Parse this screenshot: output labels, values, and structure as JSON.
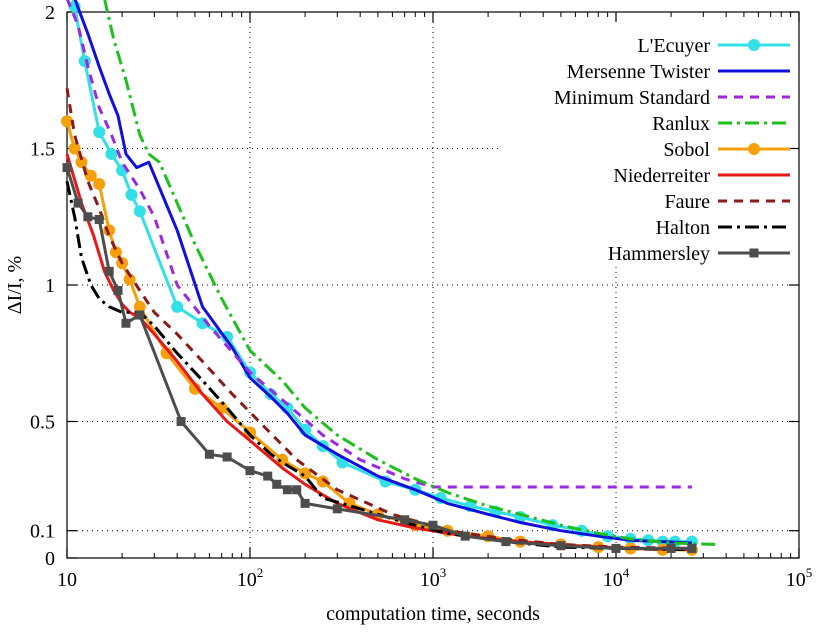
{
  "chart_data": {
    "type": "line",
    "title": "",
    "xlabel": "computation time, seconds",
    "ylabel": "ΔI/I, %",
    "xscale": "log",
    "xlim": [
      10,
      100000
    ],
    "ylim": [
      0,
      2
    ],
    "x_tick_labels": [
      {
        "base": "10",
        "exp": ""
      },
      {
        "base": "10",
        "exp": "2"
      },
      {
        "base": "10",
        "exp": "3"
      },
      {
        "base": "10",
        "exp": "4"
      },
      {
        "base": "10",
        "exp": "5"
      }
    ],
    "y_tick_labels": [
      "0",
      "0.1",
      "0.5",
      "1",
      "1.5",
      "2"
    ],
    "legend_position": "top-right",
    "series": [
      {
        "name": "L'Ecuyer",
        "color": "#33e0e8",
        "dash": "none",
        "marker": "circle",
        "x": [
          10,
          11,
          12.5,
          15,
          17.5,
          20,
          22.5,
          25,
          40,
          55,
          75,
          100,
          130,
          160,
          200,
          250,
          320,
          550,
          800,
          1100,
          1600,
          2200,
          3000,
          4500,
          6500,
          9000,
          12000,
          15000,
          18000,
          21000,
          26000
        ],
        "y": [
          2.15,
          2.02,
          1.82,
          1.56,
          1.48,
          1.42,
          1.33,
          1.27,
          0.92,
          0.86,
          0.81,
          0.68,
          0.6,
          0.55,
          0.47,
          0.41,
          0.35,
          0.28,
          0.25,
          0.22,
          0.19,
          0.17,
          0.15,
          0.12,
          0.1,
          0.08,
          0.07,
          0.065,
          0.06,
          0.06,
          0.06
        ]
      },
      {
        "name": "Mersenne Twister",
        "color": "#1010dd",
        "dash": "none",
        "marker": "none",
        "x": [
          11,
          13,
          15,
          17,
          19,
          21,
          24,
          28,
          40,
          55,
          80,
          100,
          130,
          160,
          200,
          300,
          500,
          800,
          1200,
          2000,
          3000,
          5000,
          8000,
          12000,
          18000,
          26000
        ],
        "y": [
          2.05,
          1.92,
          1.8,
          1.7,
          1.62,
          1.48,
          1.43,
          1.45,
          1.2,
          0.92,
          0.77,
          0.66,
          0.59,
          0.53,
          0.45,
          0.38,
          0.3,
          0.25,
          0.2,
          0.16,
          0.13,
          0.1,
          0.08,
          0.065,
          0.06,
          0.055
        ]
      },
      {
        "name": "Minimum Standard",
        "color": "#9a2ae0",
        "dash": "9 7",
        "marker": "none",
        "x": [
          10,
          11.5,
          13,
          15,
          17.5,
          20,
          25,
          30,
          40,
          60,
          100,
          150,
          250,
          400,
          700,
          1000,
          2000,
          4000,
          10000,
          26000
        ],
        "y": [
          2.05,
          1.95,
          1.8,
          1.65,
          1.55,
          1.45,
          1.35,
          1.25,
          1.0,
          0.85,
          0.68,
          0.58,
          0.45,
          0.36,
          0.29,
          0.26,
          0.26,
          0.26,
          0.26,
          0.26
        ]
      },
      {
        "name": "Ranlux",
        "color": "#1ec01e",
        "dash": "14 5 3 5",
        "marker": "none",
        "x": [
          16,
          18,
          21,
          25,
          28,
          32,
          40,
          50,
          70,
          100,
          150,
          200,
          300,
          500,
          800,
          1200,
          2000,
          3000,
          5000,
          8000,
          12000,
          20000,
          35000
        ],
        "y": [
          2.05,
          1.9,
          1.75,
          1.55,
          1.48,
          1.45,
          1.3,
          1.15,
          0.95,
          0.76,
          0.65,
          0.55,
          0.45,
          0.36,
          0.29,
          0.24,
          0.19,
          0.16,
          0.12,
          0.09,
          0.07,
          0.055,
          0.05
        ]
      },
      {
        "name": "Sobol",
        "color": "#f5a00a",
        "dash": "none",
        "marker": "circle",
        "x": [
          10,
          11,
          12,
          13.5,
          15,
          17,
          18.5,
          20,
          22,
          25,
          35,
          50,
          70,
          100,
          150,
          200,
          250,
          350,
          500,
          800,
          1200,
          2000,
          3000,
          5000,
          8000,
          12000,
          18000,
          26000
        ],
        "y": [
          1.6,
          1.5,
          1.45,
          1.4,
          1.37,
          1.2,
          1.12,
          1.08,
          1.02,
          0.92,
          0.75,
          0.62,
          0.55,
          0.46,
          0.36,
          0.31,
          0.28,
          0.2,
          0.16,
          0.12,
          0.1,
          0.08,
          0.06,
          0.05,
          0.04,
          0.035,
          0.03,
          0.03
        ]
      },
      {
        "name": "Niederreiter",
        "color": "#e81818",
        "dash": "none",
        "marker": "none",
        "x": [
          10,
          12,
          14,
          16,
          18,
          20,
          22,
          25,
          30,
          40,
          55,
          75,
          100,
          150,
          200,
          300,
          500,
          800,
          1500,
          3000,
          6000,
          12000,
          26000
        ],
        "y": [
          1.48,
          1.3,
          1.18,
          1.05,
          0.98,
          0.93,
          0.9,
          0.88,
          0.82,
          0.72,
          0.6,
          0.5,
          0.43,
          0.33,
          0.27,
          0.2,
          0.14,
          0.11,
          0.08,
          0.06,
          0.045,
          0.035,
          0.03
        ]
      },
      {
        "name": "Faure",
        "color": "#8b1a1a",
        "dash": "9 7",
        "marker": "none",
        "x": [
          10,
          11,
          13,
          15,
          17,
          20,
          25,
          30,
          40,
          55,
          80,
          120,
          180,
          300,
          600,
          1200,
          2500,
          5000,
          10000,
          26000
        ],
        "y": [
          1.72,
          1.55,
          1.38,
          1.28,
          1.18,
          1.08,
          0.98,
          0.9,
          0.82,
          0.72,
          0.6,
          0.48,
          0.36,
          0.25,
          0.16,
          0.1,
          0.07,
          0.05,
          0.04,
          0.035
        ]
      },
      {
        "name": "Halton",
        "color": "#000000",
        "dash": "14 5 3 5",
        "marker": "none",
        "x": [
          10,
          11,
          12,
          13.5,
          15,
          17,
          20,
          25,
          30,
          40,
          55,
          75,
          100,
          130,
          150,
          200,
          250,
          400,
          700,
          1200,
          2500,
          5000,
          10000,
          26000
        ],
        "y": [
          1.38,
          1.25,
          1.1,
          1.0,
          0.95,
          0.92,
          0.9,
          0.9,
          0.85,
          0.75,
          0.65,
          0.55,
          0.45,
          0.38,
          0.35,
          0.3,
          0.22,
          0.18,
          0.13,
          0.09,
          0.06,
          0.04,
          0.035,
          0.03
        ]
      },
      {
        "name": "Hammersley",
        "color": "#4d4d4d",
        "dash": "none",
        "marker": "square",
        "x": [
          10,
          11.5,
          13,
          15,
          17,
          19,
          21,
          25,
          42,
          60,
          75,
          100,
          125,
          140,
          160,
          180,
          200,
          300,
          700,
          1000,
          1500,
          2500,
          5000,
          10000,
          20000,
          26000
        ],
        "y": [
          1.43,
          1.3,
          1.25,
          1.24,
          1.05,
          0.98,
          0.86,
          0.89,
          0.5,
          0.38,
          0.37,
          0.32,
          0.3,
          0.27,
          0.25,
          0.25,
          0.2,
          0.18,
          0.14,
          0.12,
          0.08,
          0.06,
          0.045,
          0.035,
          0.035,
          0.035
        ]
      }
    ]
  }
}
